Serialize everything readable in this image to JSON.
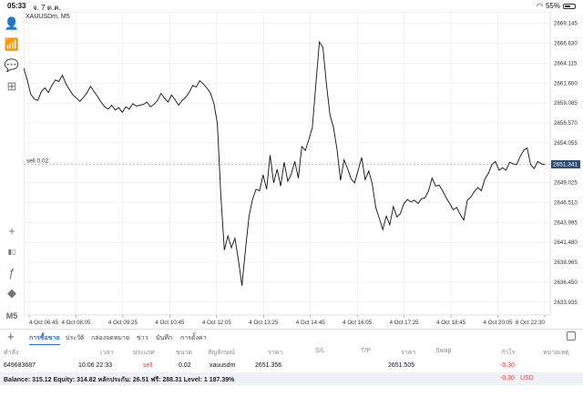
{
  "status": {
    "time": "05:33",
    "date": "จ. 7 ต.ค.",
    "battery_text": "55%",
    "battery_level": 0.55
  },
  "toolbar": [
    {
      "name": "account-icon",
      "glyph": "👤"
    },
    {
      "name": "signal-icon",
      "glyph": "📶"
    },
    {
      "name": "chat-icon",
      "glyph": "💬"
    },
    {
      "name": "add-chart-icon",
      "glyph": "⊞"
    },
    {
      "name": "crosshair-icon",
      "glyph": "+"
    },
    {
      "name": "candles-icon",
      "glyph": "▮▯"
    },
    {
      "name": "function-icon",
      "glyph": "ƒ"
    },
    {
      "name": "shapes-icon",
      "glyph": "◆"
    },
    {
      "name": "timeframe-label",
      "glyph": "M5"
    }
  ],
  "chart": {
    "title": "XAUUSDm, M5",
    "order_label": "sell 0.02",
    "current_price_label": "2651.341",
    "colors": {
      "line": "#111111",
      "grid": "#e6e6e6",
      "price_box": "#2f4a73",
      "order_line": "#9aa4ae"
    }
  },
  "chart_data": {
    "type": "line",
    "y_ticks": [
      "2669.145",
      "2666.630",
      "2664.115",
      "2661.600",
      "2659.085",
      "2656.570",
      "2654.055",
      "2651.540",
      "2649.025",
      "2646.510",
      "2643.995",
      "2641.480",
      "2638.965",
      "2636.450",
      "2633.935"
    ],
    "x_ticks": [
      "4 Oct 06:45",
      "4 Oct 08:05",
      "4 Oct 09:25",
      "4 Oct 10:45",
      "4 Oct 12:05",
      "4 Oct 13:25",
      "4 Oct 14:45",
      "4 Oct 16:05",
      "4 Oct 17:25",
      "4 Oct 18:45",
      "4 Oct 20:05",
      "6 Oct 22:30"
    ],
    "ylim": [
      2632.3,
      2670.6
    ],
    "order_price": 2651.356,
    "current_price": 2651.341,
    "values": [
      2663.5,
      2662.0,
      2660.2,
      2659.6,
      2659.4,
      2660.5,
      2661.0,
      2660.4,
      2661.3,
      2662.0,
      2661.8,
      2662.6,
      2661.5,
      2660.8,
      2660.1,
      2659.7,
      2659.3,
      2659.8,
      2660.4,
      2661.2,
      2660.5,
      2659.9,
      2659.2,
      2658.6,
      2658.3,
      2658.8,
      2658.2,
      2658.5,
      2657.9,
      2658.6,
      2658.3,
      2659.0,
      2658.7,
      2658.8,
      2658.9,
      2659.2,
      2658.6,
      2658.9,
      2659.4,
      2660.3,
      2659.7,
      2659.2,
      2660.1,
      2659.5,
      2658.8,
      2659.4,
      2659.8,
      2660.4,
      2661.3,
      2661.1,
      2661.9,
      2661.5,
      2661.0,
      2660.4,
      2659.1,
      2656.5,
      2647.5,
      2640.5,
      2642.3,
      2640.8,
      2642.0,
      2639.2,
      2636.0,
      2640.6,
      2644.8,
      2646.9,
      2648.2,
      2648.0,
      2650.0,
      2648.2,
      2652.5,
      2649.0,
      2650.7,
      2648.6,
      2651.6,
      2649.2,
      2650.1,
      2651.7,
      2649.6,
      2653.6,
      2653.1,
      2654.5,
      2656.0,
      2661.5,
      2666.8,
      2666.1,
      2661.4,
      2657.6,
      2656.0,
      2653.2,
      2649.3,
      2651.9,
      2650.8,
      2649.5,
      2649.0,
      2650.6,
      2652.2,
      2649.4,
      2650.5,
      2648.9,
      2645.9,
      2644.5,
      2643.1,
      2644.8,
      2643.7,
      2646.0,
      2644.7,
      2645.1,
      2646.4,
      2646.9,
      2646.6,
      2646.8,
      2646.4,
      2647.0,
      2647.1,
      2648.0,
      2649.6,
      2648.6,
      2648.7,
      2648.0,
      2647.1,
      2646.4,
      2645.6,
      2645.9,
      2645.0,
      2644.3,
      2646.8,
      2647.2,
      2647.9,
      2648.4,
      2648.0,
      2649.5,
      2650.2,
      2651.3,
      2651.7,
      2650.6,
      2650.9,
      2650.6,
      2651.6,
      2651.4,
      2651.3,
      2652.3,
      2653.1,
      2653.4,
      2651.3,
      2650.8,
      2651.7,
      2651.4,
      2651.3
    ]
  },
  "tabs": {
    "items": [
      {
        "label": "การซื้อขาย",
        "active": true
      },
      {
        "label": "ประวัติ",
        "active": false
      },
      {
        "label": "กล่องจดหมาย",
        "active": false
      },
      {
        "label": "ข่าว",
        "active": false
      },
      {
        "label": "บันทึก",
        "active": false
      },
      {
        "label": "การตั้งค่า",
        "active": false
      }
    ]
  },
  "table": {
    "headers": [
      "คำสั่ง",
      "เวลา",
      "ประเภท",
      "ขนาด",
      "สัญลักษณ์",
      "ราคา",
      "S/L",
      "T/P",
      "ราคา",
      "Swap",
      "กำไร",
      "หมายเหตุ"
    ],
    "row": {
      "order": "649683687",
      "time": "10.06 22:33",
      "type": "sell",
      "size": "0.02",
      "symbol": "xauusdm",
      "open_price": "2651.356",
      "sl": "",
      "tp": "",
      "price": "2651.505",
      "swap": "",
      "profit": "-0.30",
      "comment": ""
    }
  },
  "balance": {
    "text": "Balance: 315.12 Equity: 314.82 หลักประกัน: 26.51 ฟรี: 288.31 Level: 1 187.39%",
    "profit": "-0.30",
    "currency": "USD"
  }
}
